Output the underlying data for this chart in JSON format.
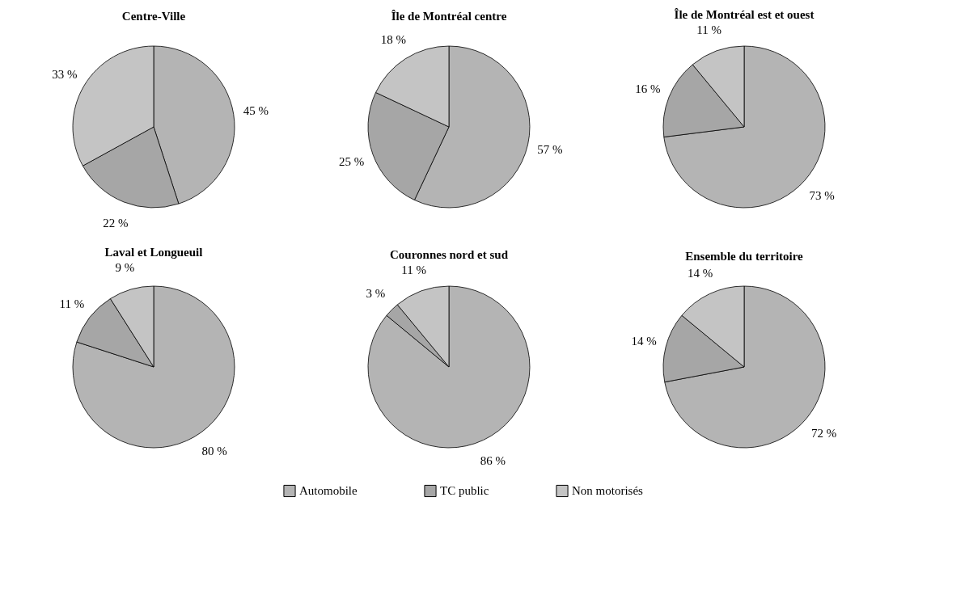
{
  "chart_data": [
    {
      "type": "pie",
      "title": "Centre-Ville",
      "categories": [
        "Automobile",
        "TC public",
        "Non motorisés"
      ],
      "values": [
        45,
        22,
        33
      ],
      "value_labels": [
        "45 %",
        "22 %",
        "33 %"
      ],
      "colors": [
        "#b4b4b4",
        "#a6a6a6",
        "#c4c4c4"
      ],
      "legend": "bottom"
    },
    {
      "type": "pie",
      "title": "Île de Montréal centre",
      "categories": [
        null,
        null,
        null
      ],
      "values": [
        57,
        25,
        18
      ],
      "value_labels": [
        "57 %",
        "25 %",
        "18 %"
      ],
      "colors": [
        "#b4b4b4",
        "#a6a6a6",
        "#c4c4c4"
      ]
    },
    {
      "type": "pie",
      "title": "Île de Montréal est et ouest",
      "categories": [
        null,
        null,
        null
      ],
      "values": [
        73,
        16,
        11
      ],
      "value_labels": [
        "73 %",
        "16 %",
        "11 %"
      ],
      "colors": [
        "#b4b4b4",
        "#a6a6a6",
        "#c4c4c4"
      ]
    },
    {
      "type": "pie",
      "title": "Laval et Longueuil",
      "categories": [
        null,
        null,
        null
      ],
      "values": [
        80,
        11,
        9
      ],
      "value_labels": [
        "80 %",
        "11 %",
        "9 %"
      ],
      "colors": [
        "#b4b4b4",
        "#a6a6a6",
        "#c4c4c4"
      ]
    },
    {
      "type": "pie",
      "title": "Couronnes nord et sud",
      "categories": [
        null,
        null,
        null
      ],
      "values": [
        86,
        3,
        11
      ],
      "value_labels": [
        "86 %",
        "3 %",
        "11 %"
      ],
      "colors": [
        "#b4b4b4",
        "#a6a6a6",
        "#c4c4c4"
      ]
    },
    {
      "type": "pie",
      "title": "Ensemble du territoire",
      "categories": [
        null,
        null,
        null
      ],
      "values": [
        72,
        14,
        14
      ],
      "value_labels": [
        "72 %",
        "14 %",
        "14 %"
      ],
      "colors": [
        "#b4b4b4",
        "#a6a6a6",
        "#c4c4c4"
      ]
    }
  ]
}
